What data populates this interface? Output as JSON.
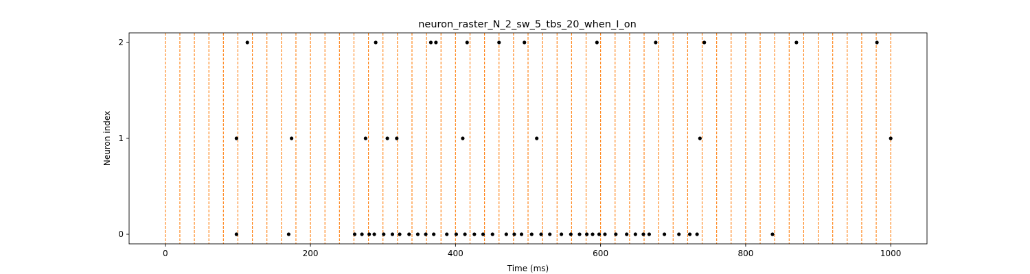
{
  "chart_data": {
    "type": "scatter",
    "title": "neuron_raster_N_2_sw_5_tbs_20_when_I_on",
    "xlabel": "Time (ms)",
    "ylabel": "Neuron index",
    "xlim": [
      -50,
      1050
    ],
    "ylim": [
      -0.1,
      2.1
    ],
    "xticks": [
      0,
      200,
      400,
      600,
      800,
      1000
    ],
    "yticks": [
      0,
      1,
      2
    ],
    "grid": false,
    "legend": "none",
    "marker_color": "#000000",
    "vline_color": "#ff7f0e",
    "vlines": [
      0,
      20,
      40,
      60,
      80,
      100,
      120,
      140,
      160,
      180,
      200,
      220,
      240,
      260,
      280,
      300,
      320,
      340,
      360,
      380,
      400,
      420,
      440,
      460,
      480,
      500,
      520,
      540,
      560,
      580,
      600,
      620,
      640,
      660,
      680,
      700,
      720,
      740,
      760,
      780,
      800,
      820,
      840,
      860,
      880,
      900,
      920,
      940,
      960,
      980,
      1000
    ],
    "series": [
      {
        "neuron": 0,
        "x": [
          98,
          170,
          261,
          271,
          281,
          288,
          301,
          313,
          323,
          336,
          348,
          359,
          370,
          388,
          401,
          413,
          426,
          438,
          451,
          470,
          481,
          491,
          505,
          518,
          530,
          546,
          559,
          571,
          581,
          589,
          598,
          606,
          621,
          636,
          648,
          659,
          667,
          688,
          708,
          723,
          733,
          837
        ]
      },
      {
        "neuron": 1,
        "x": [
          98,
          174,
          276,
          306,
          319,
          410,
          512,
          737,
          1000
        ]
      },
      {
        "neuron": 2,
        "x": [
          113,
          290,
          366,
          373,
          416,
          460,
          495,
          595,
          676,
          743,
          870,
          981
        ]
      }
    ]
  }
}
